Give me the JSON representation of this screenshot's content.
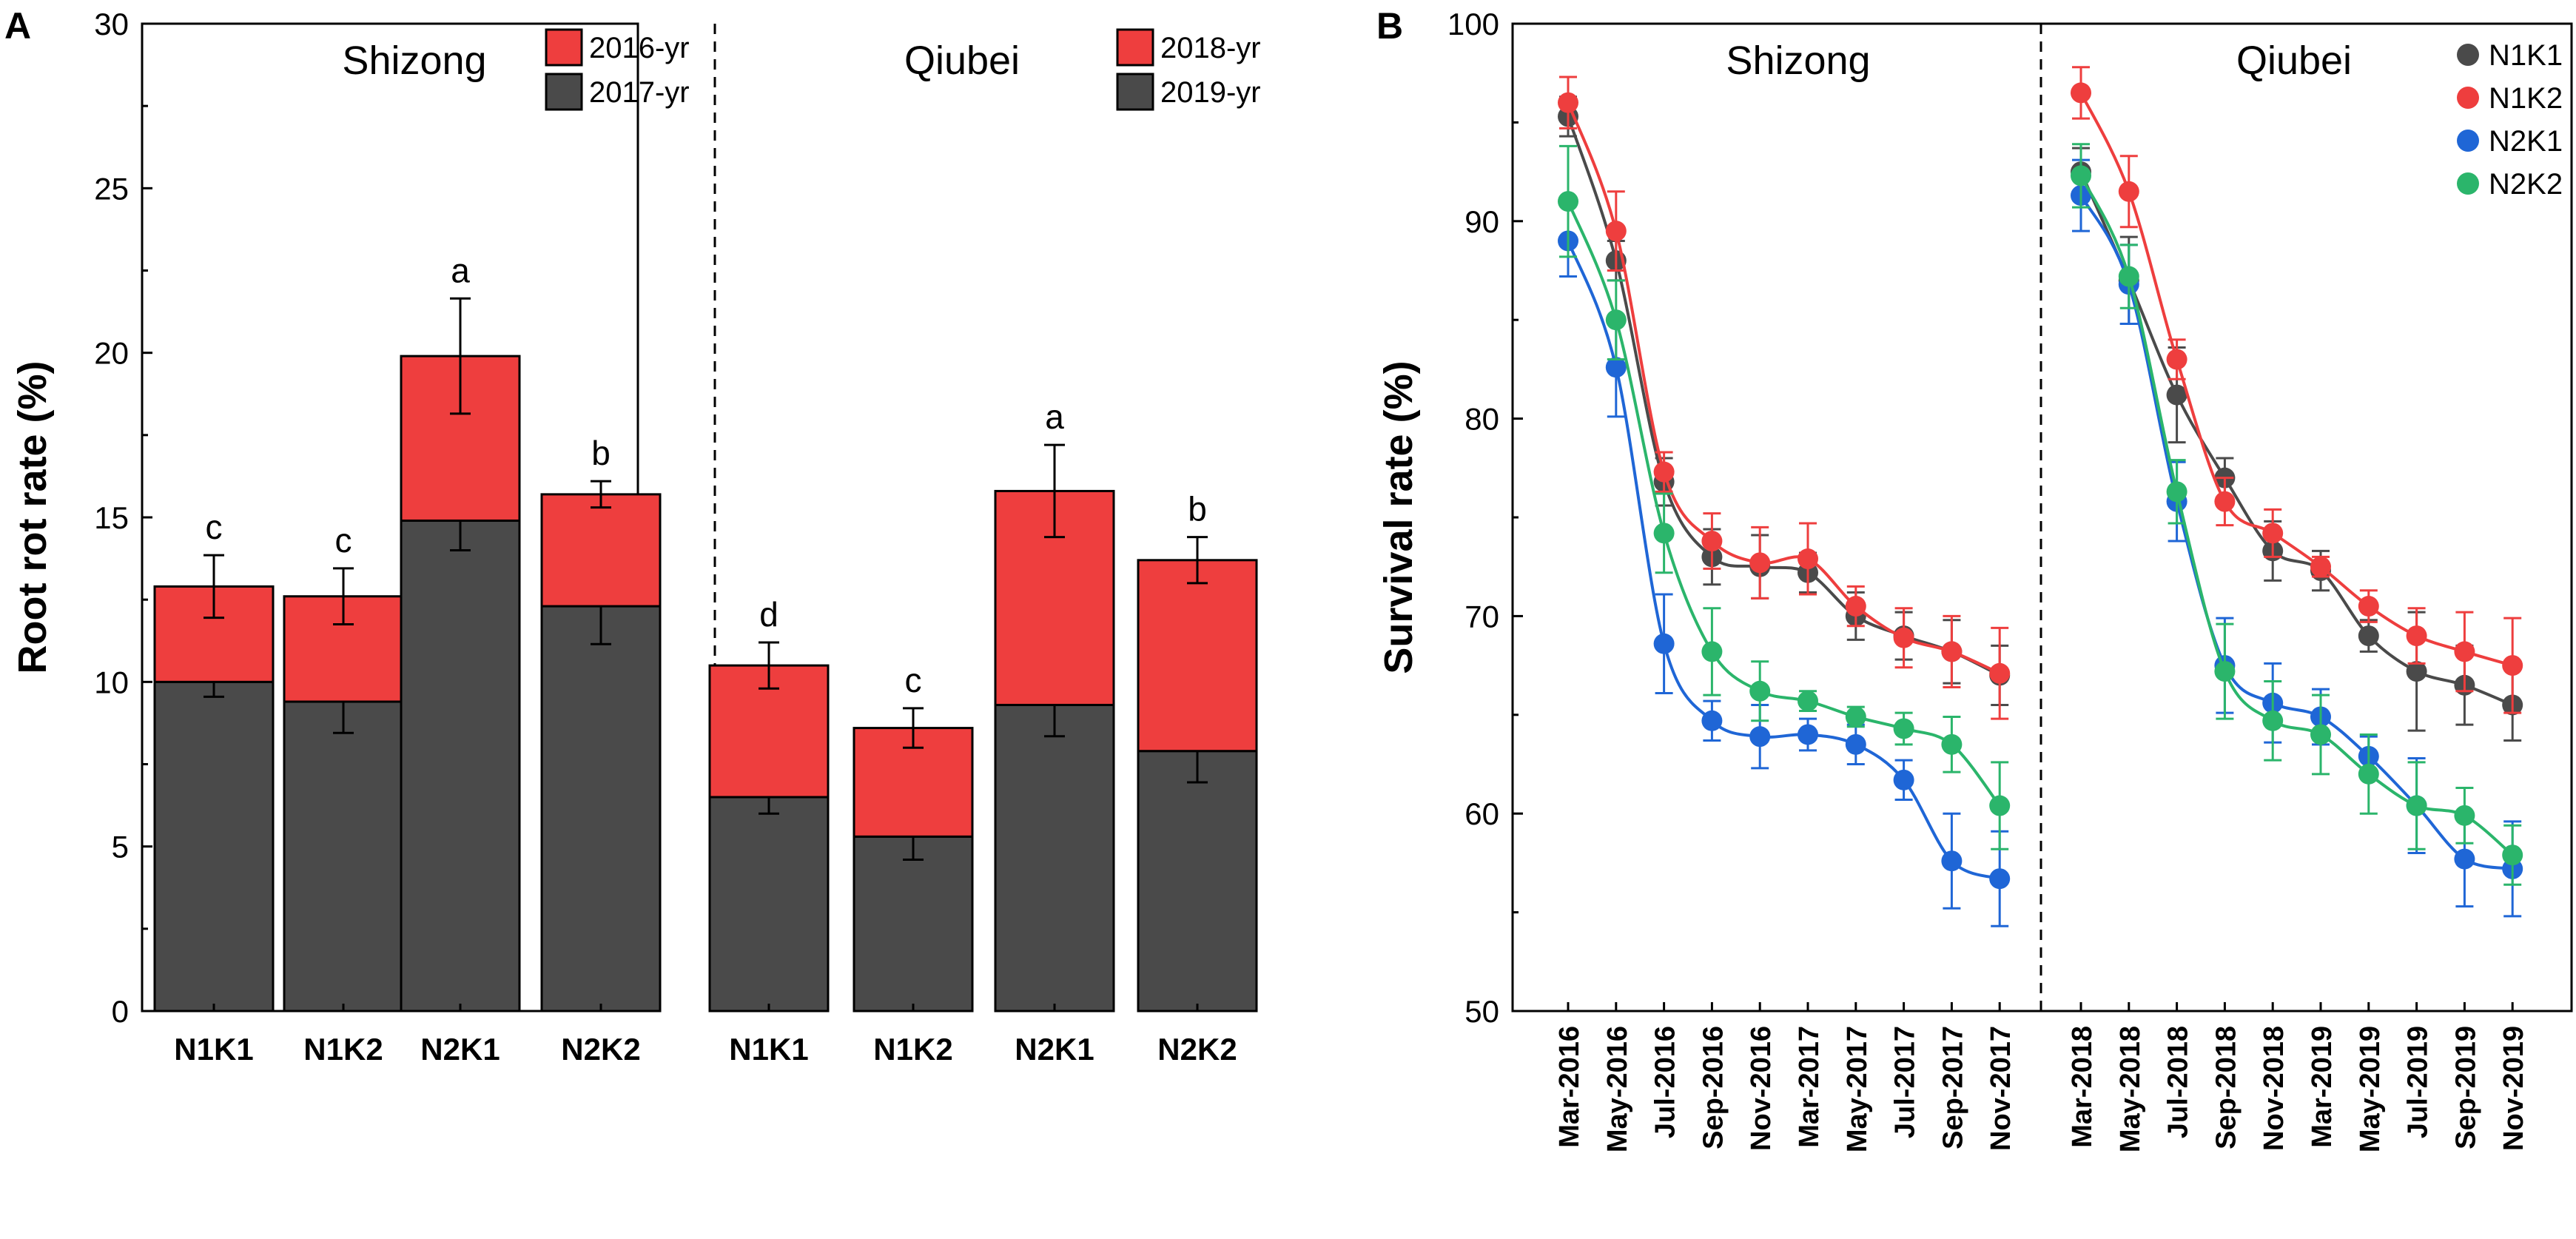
{
  "chart_data": [
    {
      "panel": "A",
      "type": "bar",
      "stacked": true,
      "ylabel": "Root rot rate (%)",
      "xlabel": "",
      "ylim": [
        0,
        30
      ],
      "yticks": [
        0,
        5,
        10,
        15,
        20,
        25,
        30
      ],
      "groups": [
        {
          "site": "Shizong",
          "categories": [
            "N1K1",
            "N1K2",
            "N2K1",
            "N2K2"
          ],
          "series": [
            {
              "name": "2017-yr",
              "color": "#4a4a4a",
              "values": [
                10.0,
                9.4,
                14.9,
                12.3
              ],
              "errors": [
                0.45,
                0.95,
                0.9,
                1.15
              ]
            },
            {
              "name": "2016-yr",
              "color": "#ee3e3e",
              "values": [
                2.9,
                3.2,
                5.0,
                3.4
              ],
              "errors": [
                0.95,
                0.85,
                1.75,
                0.4
              ]
            }
          ],
          "letters": [
            "c",
            "c",
            "a",
            "b"
          ]
        },
        {
          "site": "Qiubei",
          "categories": [
            "N1K1",
            "N1K2",
            "N2K1",
            "N2K2"
          ],
          "series": [
            {
              "name": "2019-yr",
              "color": "#4a4a4a",
              "values": [
                6.5,
                5.3,
                9.3,
                7.9
              ],
              "errors": [
                0.5,
                0.7,
                0.95,
                0.95
              ]
            },
            {
              "name": "2018-yr",
              "color": "#ee3e3e",
              "values": [
                4.0,
                3.3,
                6.5,
                5.8
              ],
              "errors": [
                0.7,
                0.6,
                1.4,
                0.7
              ]
            }
          ],
          "letters": [
            "d",
            "c",
            "a",
            "b"
          ]
        }
      ]
    },
    {
      "panel": "B",
      "type": "line",
      "ylabel": "Survival rate (%)",
      "xlabel": "",
      "ylim": [
        50,
        100
      ],
      "yticks": [
        50,
        60,
        70,
        80,
        90,
        100
      ],
      "legend_position": "top-right",
      "groups": [
        {
          "site": "Shizong",
          "x": [
            "Mar-2016",
            "May-2016",
            "Jul-2016",
            "Sep-2016",
            "Nov-2016",
            "Mar-2017",
            "May-2017",
            "Jul-2017",
            "Sep-2017",
            "Nov-2017"
          ],
          "series": [
            {
              "name": "N1K1",
              "color": "#4a4a4a",
              "values": [
                95.3,
                88.0,
                76.8,
                73.0,
                72.5,
                72.2,
                70.0,
                69.0,
                68.2,
                67.0
              ],
              "errors": [
                1.0,
                1.0,
                1.2,
                1.4,
                1.6,
                1.0,
                1.2,
                1.2,
                1.6,
                1.5
              ]
            },
            {
              "name": "N1K2",
              "color": "#ee3e3e",
              "values": [
                96.0,
                89.5,
                77.3,
                73.8,
                72.7,
                72.9,
                70.5,
                68.9,
                68.2,
                67.1
              ],
              "errors": [
                1.3,
                2.0,
                1.0,
                1.4,
                1.8,
                1.8,
                1.0,
                1.5,
                1.8,
                2.3
              ]
            },
            {
              "name": "N2K1",
              "color": "#1f66d6",
              "values": [
                89.0,
                82.6,
                68.6,
                64.7,
                63.9,
                64.0,
                63.5,
                61.7,
                57.6,
                56.7
              ],
              "errors": [
                1.8,
                2.5,
                2.5,
                1.0,
                1.6,
                0.8,
                1.0,
                1.0,
                2.4,
                2.4
              ]
            },
            {
              "name": "N2K2",
              "color": "#2bb56b",
              "values": [
                91.0,
                85.0,
                74.2,
                68.2,
                66.2,
                65.7,
                64.9,
                64.3,
                63.5,
                60.4
              ],
              "errors": [
                2.8,
                2.0,
                2.0,
                2.2,
                1.5,
                0.5,
                0.5,
                0.8,
                1.4,
                2.2
              ]
            }
          ]
        },
        {
          "site": "Qiubei",
          "x": [
            "Mar-2018",
            "May-2018",
            "Jul-2018",
            "Sep-2018",
            "Nov-2018",
            "Mar-2019",
            "May-2019",
            "Jul-2019",
            "Sep-2019",
            "Nov-2019"
          ],
          "series": [
            {
              "name": "N1K1",
              "color": "#4a4a4a",
              "values": [
                92.5,
                87.0,
                81.2,
                77.0,
                73.3,
                72.3,
                69.0,
                67.2,
                66.5,
                65.5
              ],
              "errors": [
                1.2,
                2.2,
                2.4,
                1.0,
                1.5,
                1.0,
                0.8,
                3.0,
                2.0,
                1.8
              ]
            },
            {
              "name": "N1K2",
              "color": "#ee3e3e",
              "values": [
                96.5,
                91.5,
                83.0,
                75.8,
                74.2,
                72.5,
                70.5,
                69.0,
                68.2,
                67.5
              ],
              "errors": [
                1.3,
                1.8,
                1.0,
                1.2,
                1.2,
                0.5,
                0.8,
                1.4,
                2.0,
                2.4
              ]
            },
            {
              "name": "N2K1",
              "color": "#1f66d6",
              "values": [
                91.3,
                86.8,
                75.8,
                67.5,
                65.6,
                64.9,
                62.9,
                60.4,
                57.7,
                57.2
              ],
              "errors": [
                1.8,
                2.0,
                2.0,
                2.4,
                2.0,
                1.4,
                1.0,
                2.4,
                2.4,
                2.4
              ]
            },
            {
              "name": "N2K2",
              "color": "#2bb56b",
              "values": [
                92.3,
                87.2,
                76.3,
                67.2,
                64.7,
                64.0,
                62.0,
                60.4,
                59.9,
                57.9
              ],
              "errors": [
                1.6,
                1.6,
                1.6,
                2.4,
                2.0,
                2.0,
                2.0,
                2.2,
                1.4,
                1.5
              ]
            }
          ]
        }
      ]
    }
  ],
  "panels": {
    "a_label": "A",
    "b_label": "B"
  }
}
